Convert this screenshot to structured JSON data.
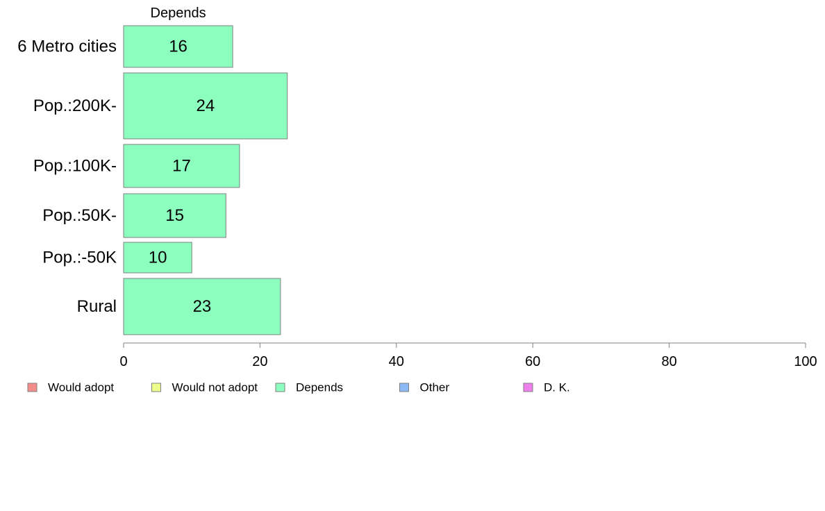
{
  "chart_data": {
    "type": "bar",
    "orientation": "horizontal",
    "stacked": true,
    "title": "",
    "xlabel": "",
    "ylabel": "",
    "xlim": [
      0,
      100
    ],
    "x_ticks": [
      0,
      20,
      40,
      60,
      80,
      100
    ],
    "grid": false,
    "legend_position": "bottom",
    "shown_series_title": "Depends",
    "categories": [
      "6 Metro cities",
      "Pop.:200K-",
      "Pop.:100K-",
      "Pop.:50K-",
      "Pop.:-50K",
      "Rural"
    ],
    "series": [
      {
        "name": "Depends",
        "color": "#8cffbf",
        "values": [
          16,
          24,
          17,
          15,
          10,
          23
        ]
      }
    ],
    "legend": [
      {
        "label": "Would adopt",
        "color": "#f58c8c"
      },
      {
        "label": "Would not adopt",
        "color": "#eeff8c"
      },
      {
        "label": "Depends",
        "color": "#8cffbf"
      },
      {
        "label": "Other",
        "color": "#8cb8f5"
      },
      {
        "label": "D. K.",
        "color": "#ee80ee"
      }
    ]
  }
}
